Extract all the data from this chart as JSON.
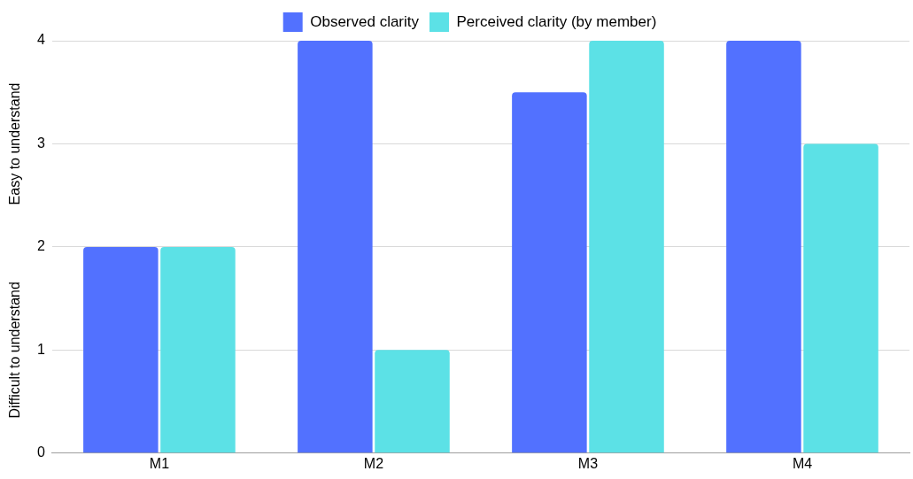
{
  "chart_data": {
    "type": "bar",
    "categories": [
      "M1",
      "M2",
      "M3",
      "M4"
    ],
    "series": [
      {
        "name": "Observed clarity",
        "color": "#5271ff",
        "values": [
          2,
          4,
          3.5,
          4
        ]
      },
      {
        "name": "Perceived clarity (by member)",
        "color": "#5ce1e6",
        "values": [
          2,
          1,
          4,
          3
        ]
      }
    ],
    "ylim": [
      0,
      4
    ],
    "yticks": [
      0,
      1,
      2,
      3,
      4
    ],
    "grid": "y",
    "legend": "top",
    "annotations": [
      "Easy to understand",
      "Difficult to understand"
    ]
  }
}
